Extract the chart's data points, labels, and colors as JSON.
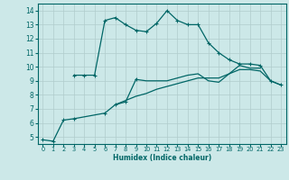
{
  "xlabel": "Humidex (Indice chaleur)",
  "bg_color": "#cce8e8",
  "grid_color": "#b0cccc",
  "line_color": "#006666",
  "xlim": [
    -0.5,
    23.5
  ],
  "ylim": [
    4.5,
    14.5
  ],
  "yticks": [
    5,
    6,
    7,
    8,
    9,
    10,
    11,
    12,
    13,
    14
  ],
  "xticks": [
    0,
    1,
    2,
    3,
    4,
    5,
    6,
    7,
    8,
    9,
    10,
    11,
    12,
    13,
    14,
    15,
    16,
    17,
    18,
    19,
    20,
    21,
    22,
    23
  ],
  "series": [
    {
      "x": [
        0,
        1,
        2,
        3,
        6,
        7,
        8,
        9
      ],
      "y": [
        4.8,
        4.7,
        6.2,
        6.3,
        6.7,
        7.3,
        7.5,
        9.1
      ],
      "marker": "+"
    },
    {
      "x": [
        3,
        4,
        5,
        6,
        7,
        8,
        9,
        10,
        11,
        12,
        13,
        14,
        15,
        16,
        17,
        18,
        19,
        20,
        21,
        22,
        23
      ],
      "y": [
        9.4,
        9.4,
        9.4,
        13.3,
        13.5,
        13.0,
        12.6,
        12.5,
        13.1,
        14.0,
        13.3,
        13.0,
        13.0,
        11.7,
        11.0,
        10.5,
        10.2,
        10.2,
        10.1,
        9.0,
        8.7
      ],
      "marker": "+"
    },
    {
      "x": [
        9,
        10,
        11,
        12,
        13,
        14,
        15,
        16,
        17,
        18,
        19,
        20,
        21,
        22,
        23
      ],
      "y": [
        9.1,
        9.0,
        9.0,
        9.0,
        9.2,
        9.4,
        9.5,
        9.0,
        8.9,
        9.5,
        9.8,
        9.8,
        9.7,
        9.0,
        8.7
      ],
      "marker": null
    },
    {
      "x": [
        7,
        8,
        9,
        10,
        11,
        12,
        13,
        14,
        15,
        16,
        17,
        18,
        19,
        20,
        21
      ],
      "y": [
        7.3,
        7.6,
        7.9,
        8.1,
        8.4,
        8.6,
        8.8,
        9.0,
        9.2,
        9.2,
        9.2,
        9.5,
        10.1,
        9.9,
        9.9
      ],
      "marker": null
    }
  ]
}
